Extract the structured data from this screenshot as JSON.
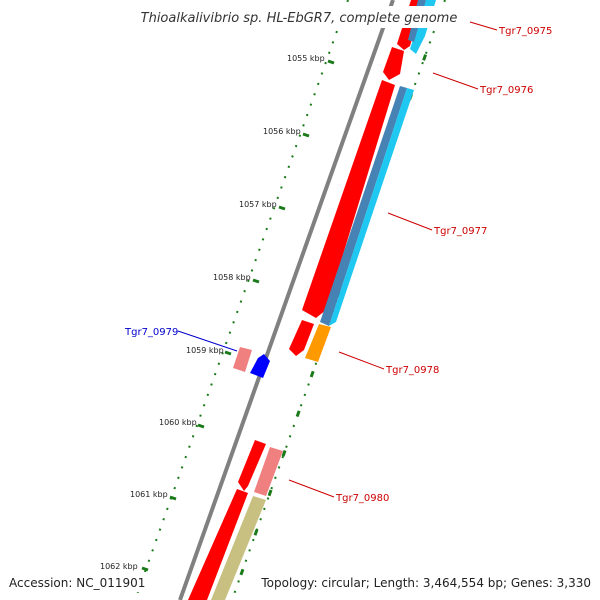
{
  "title": "Thioalkalivibrio sp. HL-EbGR7, complete genome",
  "footer": {
    "accession": "Accession: NC_011901",
    "summary": "Topology: circular; Length: 3,464,554 bp; Genes: 3,330"
  },
  "ticks": [
    "1055 kbp",
    "1056 kbp",
    "1057 kbp",
    "1058 kbp",
    "1059 kbp",
    "1060 kbp",
    "1061 kbp",
    "1062 kbp"
  ],
  "genes": [
    {
      "label": "Tgr7_0975",
      "color": "#cc0000"
    },
    {
      "label": "Tgr7_0976",
      "color": "#cc0000"
    },
    {
      "label": "Tgr7_0977",
      "color": "#cc0000"
    },
    {
      "label": "Tgr7_0978",
      "color": "#cc0000"
    },
    {
      "label": "Tgr7_0979",
      "color": "#0000cc"
    },
    {
      "label": "Tgr7_0980",
      "color": "#cc0000"
    }
  ],
  "colors": {
    "backbone": "#808080",
    "cds": "#ff0000",
    "cds_light": "#f08080",
    "rna_blue": "#0000ff",
    "cog_sky": "#1ec8f0",
    "cog_steel": "#4682b4",
    "cog_orange": "#ff9900",
    "cog_khaki": "#c8c080",
    "tick": "#1a7a1a"
  }
}
